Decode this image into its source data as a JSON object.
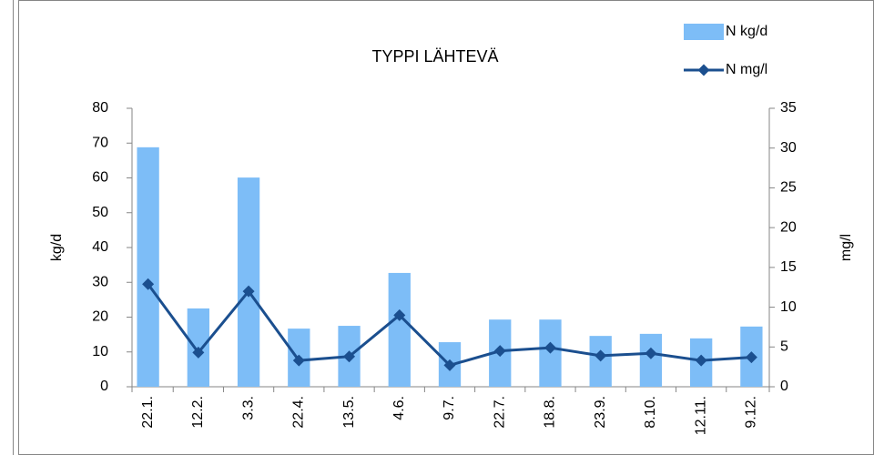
{
  "chart_data": {
    "type": "bar_line",
    "title": "TYPPI LÄHTEVÄ",
    "categories": [
      "22.1.",
      "12.2.",
      "3.3.",
      "22.4.",
      "13.5.",
      "4.6.",
      "9.7.",
      "22.7.",
      "18.8.",
      "23.9.",
      "8.10.",
      "12.11.",
      "9.12."
    ],
    "series": [
      {
        "name": "N kg/d",
        "type": "bar",
        "color": "#7dbdf7",
        "values": [
          68.8,
          22.5,
          60.1,
          16.7,
          17.5,
          32.7,
          12.8,
          19.3,
          19.3,
          14.6,
          15.2,
          13.9,
          17.3
        ]
      },
      {
        "name": "N mg/l",
        "type": "line",
        "axis": "y2",
        "color": "#1b4f8f",
        "values": [
          12.9,
          4.3,
          12.0,
          3.3,
          3.8,
          9.0,
          2.7,
          4.5,
          4.9,
          3.9,
          4.2,
          3.3,
          3.7
        ]
      }
    ],
    "ylabel": "kg/d",
    "y2label": "mg/l",
    "ylim": [
      0,
      80
    ],
    "yticks": [
      0,
      10,
      20,
      30,
      40,
      50,
      60,
      70,
      80
    ],
    "y2lim": [
      0,
      35
    ],
    "y2ticks": [
      0,
      5,
      10,
      15,
      20,
      25,
      30,
      35
    ],
    "legend": "upper right",
    "grid": false
  }
}
